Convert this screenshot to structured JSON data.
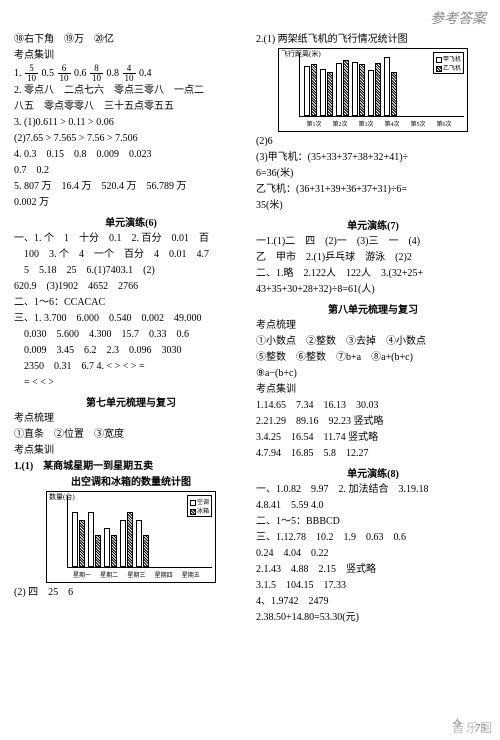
{
  "header_title": "参考答案",
  "page_num": "75",
  "left": {
    "l1": "⑱右下角　⑲万　⑳亿",
    "l2": "考点集训",
    "fracs_line": [
      {
        "num": "5",
        "den": "10",
        "dec": "0.5"
      },
      {
        "num": "6",
        "den": "10",
        "dec": "0.6"
      },
      {
        "num": "8",
        "den": "10",
        "dec": "0.8"
      },
      {
        "num": "4",
        "den": "10",
        "dec": "0.4"
      }
    ],
    "l4": "2. 零点八　二点七六　零点三零八　一点二",
    "l5": "八五　零点零零八　三十五点零五五",
    "l6": "3. (1)0.611 > 0.11 > 0.06",
    "l7": "(2)7.65 > 7.565 > 7.56 > 7.506",
    "l8": "4. 0.3　0.15　0.8　0.009　0.023",
    "l9": "0.7　0.2",
    "l10": "5. 807 万　16.4 万　520.4 万　56.789 万",
    "l11": "0.002 万",
    "unit6": "单元演练(6)",
    "l12": "一、1. 个　1　十分　0.1　2. 百分　0.01　百",
    "l13": "　100　3. 个　4　一个　百分　4　0.01　4.7",
    "l14": "　5　5.18　25　6.(1)7403.1　(2)",
    "l15": "620.9　(3)1902　4652　2766",
    "l16": "二、1～6：CCACAC",
    "l17": "三、1. 3.700　6.000　0.540　0.002　49.000",
    "l18": "　0.030　5.600　4.300　15.7　0.33　0.6",
    "l19": "　0.009　3.45　6.2　2.3　0.096　3030",
    "l20": "　2350　0.31　6.7 4. < > < > =",
    "l21": "　= < < >",
    "unit7": "第七单元梳理与复习",
    "l22": "考点梳理",
    "l23": "①直条　②位置　③宽度",
    "l24": "考点集训",
    "chart1_title_a": "1.(1)　某商城星期一到星期五卖",
    "chart1_title_b": "出空调和冰箱的数量统计图",
    "chart1_ylabel": "数量(台)",
    "chart1_categories": [
      "星期一",
      "星期二",
      "星期三",
      "星期四",
      "星期五"
    ],
    "chart1_series_a_name": "空调",
    "chart1_series_b_name": "冰箱",
    "chart1_values_a": [
      7,
      7,
      5,
      6,
      6
    ],
    "chart1_values_b": [
      6,
      4,
      4,
      7,
      4
    ],
    "chart1_ymax": 9,
    "l25": "(2) 四　25　6"
  },
  "right": {
    "l1": "2.(1) 两架纸飞机的飞行情况统计图",
    "chart2_xlabel": "飞行距离(米)",
    "chart2_categories": [
      "第1次",
      "第2次",
      "第3次",
      "第4次",
      "第5次",
      "第6次"
    ],
    "chart2_a_name": "甲飞机",
    "chart2_b_name": "乙飞机",
    "chart2_values_a": [
      35,
      33,
      37,
      38,
      32,
      41
    ],
    "chart2_values_b": [
      36,
      31,
      39,
      36,
      37,
      31
    ],
    "chart2_ymax": 44,
    "l2": "(2)6",
    "l3": "(3)甲飞机：(35+33+37+38+32+41)÷",
    "l4": "6=36(米)",
    "l5": "乙飞机：(36+31+39+36+37+31)÷6=",
    "l6": "35(米)",
    "unit7": "单元演练(7)",
    "l7": "一1.(1)二　四　(2)一　(3)三　一　(4)",
    "l8": "乙　甲市　2.(1)乒乓球　游泳　(2)2",
    "l9": "二、1.略　2.122人　122人　3.(32+25+",
    "l10": "43+35+30+28+32)÷8=61(人)",
    "unit8": "第八单元梳理与复习",
    "l11": "考点梳理",
    "l12": "①小数点　②整数　③去掉　④小数点",
    "l13": "⑤整数　⑥整数　⑦b+a　⑧a+(b+c)",
    "l14": "⑨a−(b+c)",
    "l15": "考点集训",
    "l16": "1.14.65　7.34　16.13　30.03",
    "l17": "2.21.29　89.16　92.23 竖式略",
    "l18": "3.4.25　16.54　11.74 竖式略",
    "l19": "4.7.94　16.85　5.8　12.27",
    "unit8b": "单元演练(8)",
    "l20": "一、1.0.82　9.97　2. 加法结合　3.19.18",
    "l21": "4.8.41　5.59 4.0",
    "l22": "二、1～5：BBBCD",
    "l23": "三、1.12.78　10.2　1.9　0.63　0.6",
    "l24": "0.24　4.04　0.22",
    "l25": "2.1.43　4.88　2.15　竖式略",
    "l26": "3.1.5　104.15　17.33",
    "l27": "4、1.9742　2479",
    "l28": "2.38.50+14.80=53.30(元)"
  }
}
